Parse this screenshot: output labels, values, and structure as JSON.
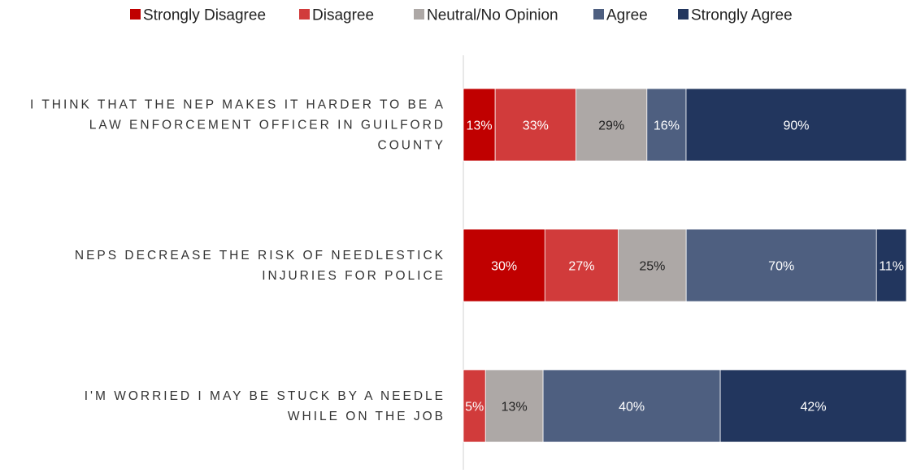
{
  "chart_data": {
    "type": "bar",
    "orientation": "horizontal",
    "stacked": true,
    "legend_position": "top",
    "grid": false,
    "categories": [
      {
        "lines": [
          "I THINK THAT THE NEP MAKES IT HARDER TO BE A",
          "LAW ENFORCEMENT OFFICER IN GUILFORD",
          "COUNTY"
        ]
      },
      {
        "lines": [
          "NEPS DECREASE THE RISK OF NEEDLESTICK",
          "INJURIES FOR POLICE"
        ]
      },
      {
        "lines": [
          "I'M WORRIED I MAY BE STUCK BY A NEEDLE",
          "WHILE ON THE JOB"
        ]
      }
    ],
    "series": [
      {
        "name": "Strongly Disagree",
        "color": "#C00000",
        "label_color": "#ffffff",
        "values": [
          13,
          30,
          0
        ],
        "labels": [
          "13%",
          "30%",
          ""
        ]
      },
      {
        "name": "Disagree",
        "color": "#D13B3B",
        "label_color": "#ffffff",
        "values": [
          33,
          27,
          5
        ],
        "labels": [
          "33%",
          "27%",
          "5%"
        ]
      },
      {
        "name": "Neutral/No Opinion",
        "color": "#ADA8A6",
        "label_color": "#222222",
        "values": [
          29,
          25,
          13
        ],
        "labels": [
          "29%",
          "25%",
          "13%"
        ]
      },
      {
        "name": "Agree",
        "color": "#4E5F80",
        "label_color": "#ffffff",
        "values": [
          16,
          70,
          40
        ],
        "labels": [
          "16%",
          "70%",
          "40%"
        ]
      },
      {
        "name": "Strongly Agree",
        "color": "#22365E",
        "label_color": "#ffffff",
        "values": [
          90,
          11,
          42
        ],
        "labels": [
          "90%",
          "11%",
          "42%"
        ]
      }
    ]
  }
}
